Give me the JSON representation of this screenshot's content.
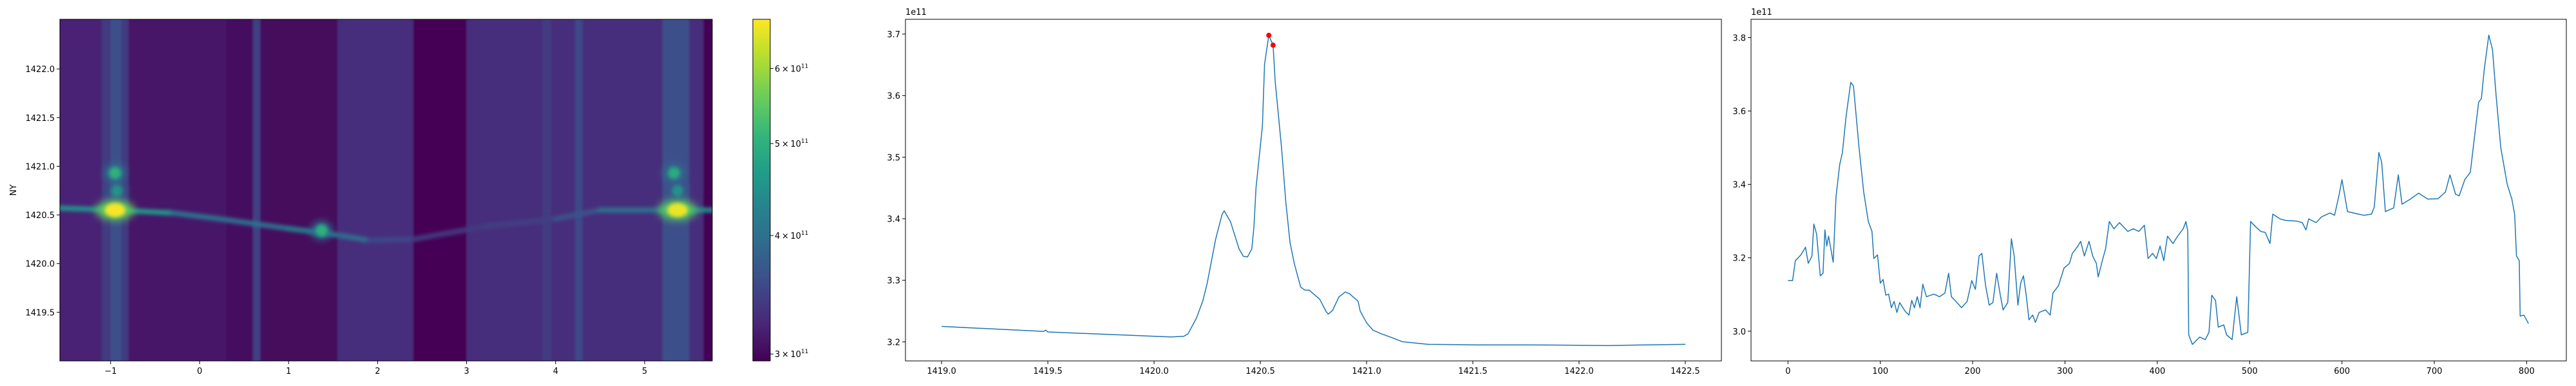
{
  "chart_data": [
    {
      "type": "heatmap",
      "ylabel": "NY",
      "xlabel": "",
      "xlim": [
        -1.57,
        5.76
      ],
      "ylim": [
        1419.0,
        1422.51
      ],
      "xticks": [
        -1,
        0,
        1,
        2,
        3,
        4,
        5
      ],
      "xtick_labels": [
        "−1",
        "0",
        "1",
        "2",
        "3",
        "4",
        "5"
      ],
      "yticks": [
        1419.5,
        1420.0,
        1420.5,
        1421.0,
        1421.5,
        1422.0
      ],
      "ytick_labels": [
        "1419.5",
        "1420.0",
        "1420.5",
        "1421.0",
        "1421.5",
        "1422.0"
      ],
      "colormap": "viridis",
      "color_scale": "log",
      "color_range": [
        295000000000.0,
        676000000000.0
      ],
      "colorbar": {
        "ticks": [
          {
            "value": 300000000000.0,
            "label": "3 × 10",
            "sup": "11"
          },
          {
            "value": 400000000000.0,
            "label": "4 × 10",
            "sup": "11"
          },
          {
            "value": 500000000000.0,
            "label": "5 × 10",
            "sup": "11"
          },
          {
            "value": 600000000000.0,
            "label": "6 × 10",
            "sup": "11"
          }
        ]
      },
      "column_bands": [
        {
          "x": [
            -1.57,
            -1.1
          ],
          "value": 320000000000.0
        },
        {
          "x": [
            -1.1,
            -0.8
          ],
          "value": 340000000000.0
        },
        {
          "x": [
            -1.0,
            -0.88
          ],
          "value": 360000000000.0
        },
        {
          "x": [
            -0.8,
            0.3
          ],
          "value": 310000000000.0
        },
        {
          "x": [
            0.3,
            0.75
          ],
          "value": 305000000000.0
        },
        {
          "x": [
            0.6,
            0.68
          ],
          "value": 345000000000.0
        },
        {
          "x": [
            0.75,
            1.55
          ],
          "value": 300000000000.0
        },
        {
          "x": [
            1.55,
            2.4
          ],
          "value": 330000000000.0
        },
        {
          "x": [
            2.4,
            3.0
          ],
          "value": 295000000000.0
        },
        {
          "x": [
            3.0,
            5.2
          ],
          "value": 330000000000.0
        },
        {
          "x": [
            3.85,
            3.95
          ],
          "value": 340000000000.0
        },
        {
          "x": [
            4.22,
            4.3
          ],
          "value": 355000000000.0
        },
        {
          "x": [
            5.2,
            5.5
          ],
          "value": 360000000000.0
        },
        {
          "x": [
            5.5,
            5.66
          ],
          "value": 330000000000.0
        },
        {
          "x": [
            5.66,
            5.76
          ],
          "value": 295000000000.0
        }
      ],
      "ridge": [
        {
          "x": -1.57,
          "y": 1420.57,
          "value": 400000000000.0
        },
        {
          "x": -0.95,
          "y": 1420.55,
          "value": 500000000000.0
        },
        {
          "x": -0.3,
          "y": 1420.52,
          "value": 420000000000.0
        },
        {
          "x": 0.3,
          "y": 1420.45,
          "value": 390000000000.0
        },
        {
          "x": 1.0,
          "y": 1420.36,
          "value": 410000000000.0
        },
        {
          "x": 1.5,
          "y": 1420.3,
          "value": 430000000000.0
        },
        {
          "x": 1.9,
          "y": 1420.24,
          "value": 370000000000.0
        },
        {
          "x": 2.4,
          "y": 1420.25,
          "value": 340000000000.0
        },
        {
          "x": 3.2,
          "y": 1420.38,
          "value": 340000000000.0
        },
        {
          "x": 4.0,
          "y": 1420.46,
          "value": 350000000000.0
        },
        {
          "x": 4.5,
          "y": 1420.55,
          "value": 380000000000.0
        },
        {
          "x": 5.2,
          "y": 1420.55,
          "value": 420000000000.0
        },
        {
          "x": 5.76,
          "y": 1420.55,
          "value": 460000000000.0
        }
      ],
      "peaks": [
        {
          "x": -0.95,
          "y": 1420.55,
          "value": 670000000000.0
        },
        {
          "x": -0.95,
          "y": 1420.93,
          "value": 500000000000.0
        },
        {
          "x": -0.93,
          "y": 1420.75,
          "value": 450000000000.0
        },
        {
          "x": 1.37,
          "y": 1420.34,
          "value": 500000000000.0
        },
        {
          "x": 5.37,
          "y": 1420.55,
          "value": 660000000000.0
        },
        {
          "x": 5.33,
          "y": 1420.93,
          "value": 490000000000.0
        },
        {
          "x": 5.37,
          "y": 1420.75,
          "value": 450000000000.0
        }
      ]
    },
    {
      "type": "line",
      "xlabel": "",
      "ylabel": "",
      "offset_label": "1e11",
      "xlim": [
        1418.83,
        1422.67
      ],
      "ylim": [
        3.169,
        3.724
      ],
      "xticks": [
        1419.0,
        1419.5,
        1420.0,
        1420.5,
        1421.0,
        1421.5,
        1422.0,
        1422.5
      ],
      "xtick_labels": [
        "1419.0",
        "1419.5",
        "1420.0",
        "1420.5",
        "1421.0",
        "1421.5",
        "1422.0",
        "1422.5"
      ],
      "yticks": [
        3.2,
        3.3,
        3.4,
        3.5,
        3.6,
        3.7
      ],
      "ytick_labels": [
        "3.2",
        "3.3",
        "3.4",
        "3.5",
        "3.6",
        "3.7"
      ],
      "line_color": "#1f77b4",
      "marker_color": "#ff0000",
      "x": [
        1419.0,
        1419.48,
        1419.49,
        1419.5,
        1420.08,
        1420.14,
        1420.16,
        1420.2,
        1420.23,
        1420.25,
        1420.27,
        1420.29,
        1420.32,
        1420.33,
        1420.36,
        1420.4,
        1420.42,
        1420.44,
        1420.46,
        1420.47,
        1420.48,
        1420.51,
        1420.52,
        1420.54,
        1420.56,
        1420.57,
        1420.6,
        1420.62,
        1420.64,
        1420.66,
        1420.69,
        1420.71,
        1420.73,
        1420.78,
        1420.81,
        1420.82,
        1420.84,
        1420.87,
        1420.9,
        1420.92,
        1420.96,
        1420.97,
        1421.0,
        1421.03,
        1421.07,
        1421.11,
        1421.17,
        1421.23,
        1421.29,
        1421.52,
        1421.77,
        1422.14,
        1422.5
      ],
      "y": [
        3.225,
        3.217,
        3.219,
        3.216,
        3.208,
        3.209,
        3.213,
        3.239,
        3.267,
        3.295,
        3.331,
        3.367,
        3.407,
        3.413,
        3.395,
        3.351,
        3.339,
        3.338,
        3.351,
        3.387,
        3.451,
        3.551,
        3.651,
        3.698,
        3.682,
        3.623,
        3.515,
        3.427,
        3.361,
        3.327,
        3.289,
        3.284,
        3.284,
        3.269,
        3.249,
        3.245,
        3.251,
        3.273,
        3.281,
        3.278,
        3.266,
        3.25,
        3.231,
        3.219,
        3.213,
        3.208,
        3.2,
        3.198,
        3.196,
        3.195,
        3.195,
        3.194,
        3.196
      ],
      "markers": [
        {
          "x": 1420.54,
          "y": 3.698
        },
        {
          "x": 1420.56,
          "y": 3.682
        }
      ]
    },
    {
      "type": "line",
      "xlabel": "",
      "ylabel": "",
      "offset_label": "1e11",
      "xlim": [
        -40,
        843
      ],
      "ylim": [
        2.919,
        3.85
      ],
      "xticks": [
        0,
        100,
        200,
        300,
        400,
        500,
        600,
        700,
        800
      ],
      "xtick_labels": [
        "0",
        "100",
        "200",
        "300",
        "400",
        "500",
        "600",
        "700",
        "800"
      ],
      "yticks": [
        3.0,
        3.2,
        3.4,
        3.6,
        3.8
      ],
      "ytick_labels": [
        "3.0",
        "3.2",
        "3.4",
        "3.6",
        "3.8"
      ],
      "line_color": "#1f77b4",
      "x": [
        0,
        5,
        8,
        14,
        19,
        22,
        26,
        28,
        31,
        35,
        38,
        40,
        42,
        44,
        49,
        52,
        56,
        59,
        63,
        68,
        71,
        77,
        82,
        87,
        91,
        93,
        97,
        100,
        103,
        106,
        109,
        112,
        115,
        118,
        121,
        127,
        131,
        134,
        137,
        140,
        143,
        146,
        150,
        158,
        164,
        170,
        174,
        177,
        182,
        188,
        194,
        199,
        203,
        207,
        210,
        214,
        218,
        222,
        226,
        230,
        233,
        238,
        242,
        245,
        249,
        252,
        255,
        258,
        261,
        265,
        268,
        272,
        279,
        284,
        287,
        293,
        299,
        305,
        308,
        314,
        317,
        321,
        326,
        330,
        334,
        336,
        341,
        344,
        348,
        353,
        359,
        368,
        374,
        380,
        386,
        390,
        395,
        399,
        403,
        407,
        411,
        417,
        422,
        428,
        431,
        433,
        434,
        438,
        446,
        452,
        456,
        459,
        463,
        466,
        472,
        475,
        481,
        486,
        491,
        498,
        501,
        506,
        512,
        517,
        522,
        525,
        533,
        539,
        551,
        557,
        561,
        564,
        572,
        578,
        587,
        592,
        597,
        600,
        606,
        618,
        624,
        632,
        635,
        640,
        643,
        647,
        656,
        661,
        665,
        674,
        683,
        693,
        704,
        712,
        717,
        723,
        727,
        733,
        739,
        744,
        748,
        751,
        754,
        759,
        763,
        767,
        772,
        779,
        784,
        787,
        789,
        792,
        793,
        797,
        802
      ],
      "y": [
        3.138,
        3.138,
        3.192,
        3.208,
        3.229,
        3.185,
        3.205,
        3.292,
        3.265,
        3.151,
        3.158,
        3.276,
        3.232,
        3.259,
        3.188,
        3.366,
        3.453,
        3.487,
        3.587,
        3.678,
        3.668,
        3.5,
        3.38,
        3.299,
        3.272,
        3.198,
        3.208,
        3.131,
        3.141,
        3.098,
        3.101,
        3.064,
        3.081,
        3.051,
        3.078,
        3.054,
        3.044,
        3.084,
        3.064,
        3.094,
        3.064,
        3.128,
        3.094,
        3.101,
        3.094,
        3.104,
        3.158,
        3.094,
        3.081,
        3.064,
        3.081,
        3.138,
        3.114,
        3.205,
        3.212,
        3.124,
        3.071,
        3.078,
        3.158,
        3.098,
        3.058,
        3.078,
        3.252,
        3.205,
        3.071,
        3.131,
        3.151,
        3.098,
        3.031,
        3.044,
        3.024,
        3.051,
        3.058,
        3.044,
        3.104,
        3.124,
        3.172,
        3.185,
        3.212,
        3.232,
        3.245,
        3.205,
        3.245,
        3.205,
        3.185,
        3.148,
        3.198,
        3.225,
        3.299,
        3.279,
        3.296,
        3.272,
        3.279,
        3.272,
        3.289,
        3.198,
        3.212,
        3.198,
        3.232,
        3.192,
        3.259,
        3.239,
        3.259,
        3.279,
        3.299,
        3.272,
        2.99,
        2.964,
        2.984,
        2.977,
        2.997,
        3.098,
        3.084,
        3.011,
        3.017,
        2.99,
        2.977,
        3.094,
        2.99,
        2.997,
        3.299,
        3.286,
        3.272,
        3.269,
        3.239,
        3.319,
        3.306,
        3.302,
        3.3,
        3.296,
        3.276,
        3.306,
        3.296,
        3.312,
        3.322,
        3.316,
        3.373,
        3.413,
        3.326,
        3.319,
        3.316,
        3.319,
        3.339,
        3.487,
        3.46,
        3.326,
        3.336,
        3.426,
        3.346,
        3.36,
        3.376,
        3.36,
        3.361,
        3.379,
        3.426,
        3.373,
        3.369,
        3.413,
        3.433,
        3.54,
        3.624,
        3.634,
        3.711,
        3.807,
        3.768,
        3.641,
        3.5,
        3.4,
        3.36,
        3.319,
        3.205,
        3.192,
        3.041,
        3.044,
        3.021
      ]
    }
  ]
}
